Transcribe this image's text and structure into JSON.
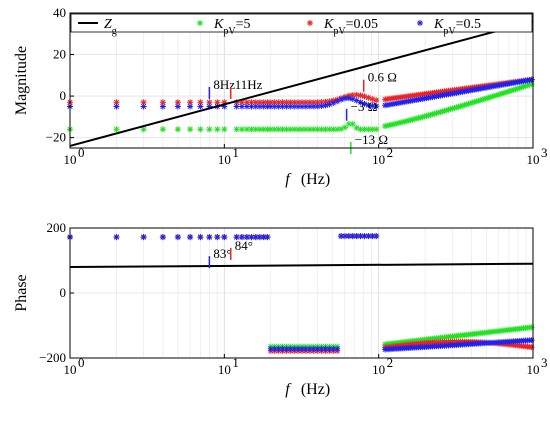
{
  "chart_data": [
    {
      "type": "scatter",
      "name": "magnitude",
      "xscale": "log",
      "xlim": [
        1,
        1000
      ],
      "ylim": [
        -25,
        40
      ],
      "yticks": [
        -20,
        0,
        20,
        40
      ],
      "ytick_labels": [
        "−20",
        "0",
        "20",
        "40"
      ],
      "xtick_labels": [
        "10",
        "10",
        "10",
        "10"
      ],
      "xtick_exps": [
        "0",
        "1",
        "2",
        "3"
      ],
      "ylabel": "Magnitude",
      "xlabel_main": "f",
      "xlabel_unit": "(Hz)",
      "grid": true,
      "legend": {
        "placement": "top",
        "entries": [
          {
            "text_main": "Z",
            "text_sub": "g",
            "style": "line",
            "color": "#000000"
          },
          {
            "text_main": "K",
            "text_sub": "pV",
            "text_rest": "=5",
            "style": "marker",
            "color": "#22e322"
          },
          {
            "text_main": "K",
            "text_sub": "pV",
            "text_rest": "=0.05",
            "style": "marker",
            "color": "#ee2222"
          },
          {
            "text_main": "K",
            "text_sub": "pV",
            "text_rest": "=0.5",
            "style": "marker",
            "color": "#2222ee"
          }
        ]
      },
      "line_series": {
        "name": "Zg",
        "color": "#000000",
        "x": [
          1,
          1000
        ],
        "y": [
          -24,
          36
        ]
      },
      "annotations": [
        {
          "text": "8Hz",
          "x": 8,
          "y": 1.5,
          "arrow_color": "#2222ee"
        },
        {
          "text": "11Hz",
          "x": 11,
          "y": 1.5,
          "arrow_color": "#ee2222"
        },
        {
          "text": "0.6 Ω",
          "x": 80,
          "y": 5,
          "arrow_color": "#ee2222"
        },
        {
          "text": "−3 Ω",
          "x": 62,
          "y": -9,
          "arrow_color": "#2222ee"
        },
        {
          "text": "−13 Ω",
          "x": 66,
          "y": -25,
          "arrow_color": "#22e322"
        }
      ]
    },
    {
      "type": "scatter",
      "name": "phase",
      "xscale": "log",
      "xlim": [
        1,
        1000
      ],
      "ylim": [
        -200,
        200
      ],
      "yticks": [
        -200,
        0,
        200
      ],
      "ytick_labels": [
        "−200",
        "0",
        "200"
      ],
      "xtick_labels": [
        "10",
        "10",
        "10",
        "10"
      ],
      "xtick_exps": [
        "0",
        "1",
        "2",
        "3"
      ],
      "ylabel": "Phase",
      "xlabel_main": "f",
      "xlabel_unit": "(Hz)",
      "grid": true,
      "line_series": {
        "name": "Zg",
        "color": "#000000",
        "x": [
          1,
          1000
        ],
        "y": [
          80,
          90
        ]
      },
      "annotations": [
        {
          "text": "83°",
          "x": 8,
          "y": 95,
          "arrow_color": "#2222ee"
        },
        {
          "text": "84°",
          "x": 11,
          "y": 120,
          "arrow_color": "#ee2222"
        }
      ]
    }
  ]
}
